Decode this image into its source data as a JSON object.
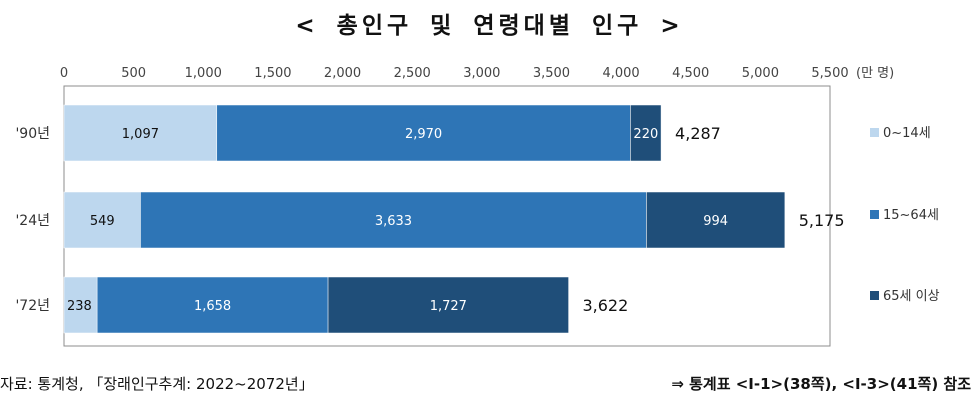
{
  "colors": {
    "age_0_14": "#bdd7ee",
    "age_15_64": "#2e75b6",
    "age_65_plus": "#1f4e79",
    "plot_border": "#8c8c8c",
    "text_dark": "#111111",
    "text_light": "#ffffff"
  },
  "footer": {
    "source": "자료: 통계청, 「장래인구추계: 2022~2072년」",
    "reference": "⇒ 통계표 <Ⅰ-1>(38쪽), <Ⅰ-3>(41쪽) 참조"
  },
  "chart_data": {
    "type": "bar",
    "orientation": "horizontal",
    "stacked": true,
    "title": "< 총인구 및 연령대별 인구 >",
    "xlabel": "",
    "ylabel": "",
    "unit_label": "(만 명)",
    "xlim": [
      0,
      5500
    ],
    "xticks": [
      0,
      500,
      1000,
      1500,
      2000,
      2500,
      3000,
      3500,
      4000,
      4500,
      5000,
      5500
    ],
    "xtick_labels": [
      "0",
      "500",
      "1,000",
      "1,500",
      "2,000",
      "2,500",
      "3,000",
      "3,500",
      "4,000",
      "4,500",
      "5,000",
      "5,500"
    ],
    "grid": false,
    "legend_position": "right",
    "categories": [
      "'90년",
      "'24년",
      "'72년"
    ],
    "series": [
      {
        "name": "0~14세",
        "values": [
          1097,
          549,
          238
        ],
        "labels": [
          "1,097",
          "549",
          "238"
        ]
      },
      {
        "name": "15~64세",
        "values": [
          2970,
          3633,
          1658
        ],
        "labels": [
          "2,970",
          "3,633",
          "1,658"
        ]
      },
      {
        "name": "65세 이상",
        "values": [
          220,
          994,
          1727
        ],
        "labels": [
          "220",
          "994",
          "1,727"
        ]
      }
    ],
    "totals": [
      4287,
      5175,
      3622
    ],
    "total_labels": [
      "4,287",
      "5,175",
      "3,622"
    ]
  }
}
